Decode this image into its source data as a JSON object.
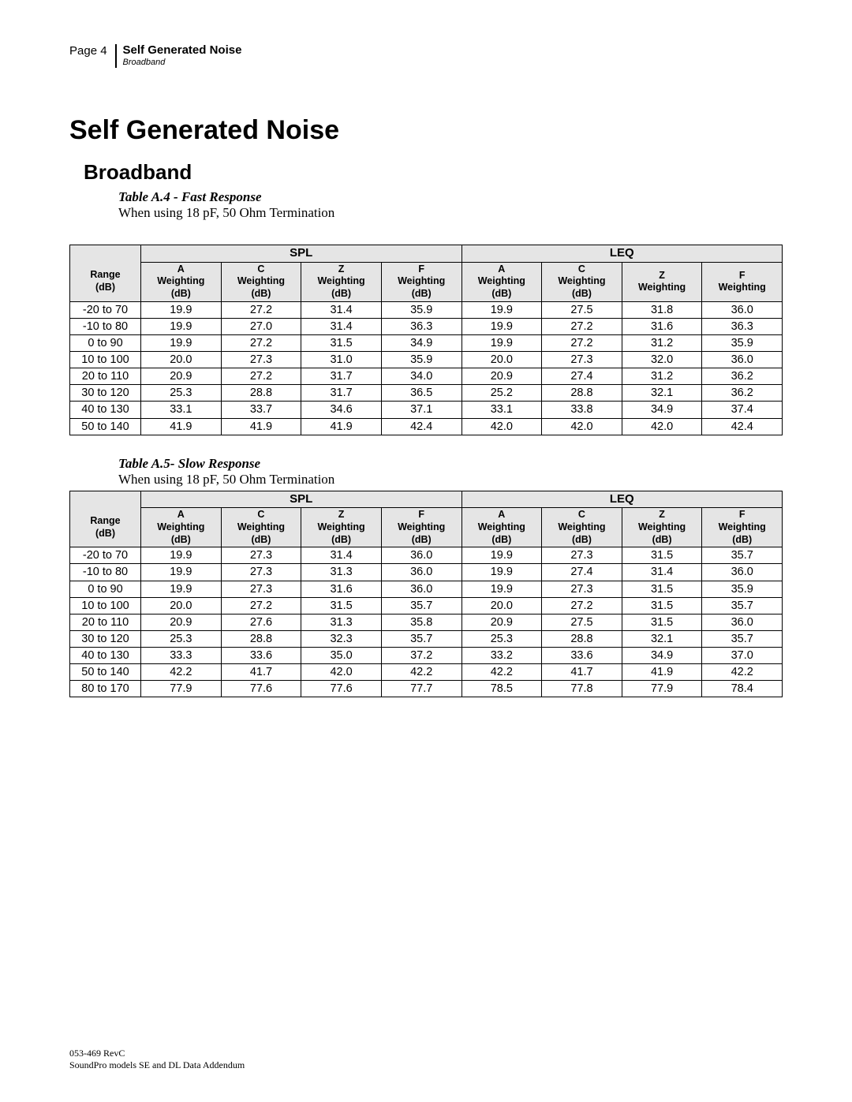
{
  "header": {
    "page_label": "Page 4",
    "title": "Self Generated Noise",
    "subtitle": "Broadband"
  },
  "main_title": "Self Generated Noise",
  "section_title": "Broadband",
  "tables": [
    {
      "caption": "Table A.4 - Fast Response",
      "subcaption": "When using 18 pF, 50 Ohm Termination",
      "group_headers": [
        "SPL",
        "LEQ"
      ],
      "range_header": {
        "top": "Range",
        "bottom": "(dB)"
      },
      "sub_headers": [
        {
          "top": "A",
          "mid": "Weighting",
          "bottom": "(dB)"
        },
        {
          "top": "C",
          "mid": "Weighting",
          "bottom": "(dB)"
        },
        {
          "top": "Z",
          "mid": "Weighting",
          "bottom": "(dB)"
        },
        {
          "top": "F",
          "mid": "Weighting",
          "bottom": "(dB)"
        },
        {
          "top": "A",
          "mid": "Weighting",
          "bottom": "(dB)"
        },
        {
          "top": "C",
          "mid": "Weighting",
          "bottom": "(dB)"
        },
        {
          "top": "Z",
          "mid": "Weighting",
          "bottom": ""
        },
        {
          "top": "F",
          "mid": "Weighting",
          "bottom": ""
        }
      ],
      "rows": [
        [
          "-20 to 70",
          "19.9",
          "27.2",
          "31.4",
          "35.9",
          "19.9",
          "27.5",
          "31.8",
          "36.0"
        ],
        [
          "-10 to 80",
          "19.9",
          "27.0",
          "31.4",
          "36.3",
          "19.9",
          "27.2",
          "31.6",
          "36.3"
        ],
        [
          "0 to 90",
          "19.9",
          "27.2",
          "31.5",
          "34.9",
          "19.9",
          "27.2",
          "31.2",
          "35.9"
        ],
        [
          "10 to 100",
          "20.0",
          "27.3",
          "31.0",
          "35.9",
          "20.0",
          "27.3",
          "32.0",
          "36.0"
        ],
        [
          "20 to 110",
          "20.9",
          "27.2",
          "31.7",
          "34.0",
          "20.9",
          "27.4",
          "31.2",
          "36.2"
        ],
        [
          "30 to 120",
          "25.3",
          "28.8",
          "31.7",
          "36.5",
          "25.2",
          "28.8",
          "32.1",
          "36.2"
        ],
        [
          "40 to 130",
          "33.1",
          "33.7",
          "34.6",
          "37.1",
          "33.1",
          "33.8",
          "34.9",
          "37.4"
        ],
        [
          "50 to 140",
          "41.9",
          "41.9",
          "41.9",
          "42.4",
          "42.0",
          "42.0",
          "42.0",
          "42.4"
        ]
      ]
    },
    {
      "caption": "Table A.5- Slow Response",
      "subcaption": "When using 18 pF, 50 Ohm Termination",
      "group_headers": [
        "SPL",
        "LEQ"
      ],
      "range_header": {
        "top": "Range",
        "bottom": "(dB)"
      },
      "sub_headers": [
        {
          "top": "A",
          "mid": "Weighting",
          "bottom": "(dB)"
        },
        {
          "top": "C",
          "mid": "Weighting",
          "bottom": "(dB)"
        },
        {
          "top": "Z",
          "mid": "Weighting",
          "bottom": "(dB)"
        },
        {
          "top": "F",
          "mid": "Weighting",
          "bottom": "(dB)"
        },
        {
          "top": "A",
          "mid": "Weighting",
          "bottom": "(dB)"
        },
        {
          "top": "C",
          "mid": "Weighting",
          "bottom": "(dB)"
        },
        {
          "top": "Z",
          "mid": "Weighting",
          "bottom": "(dB)"
        },
        {
          "top": "F",
          "mid": "Weighting",
          "bottom": "(dB)"
        }
      ],
      "rows": [
        [
          "-20 to 70",
          "19.9",
          "27.3",
          "31.4",
          "36.0",
          "19.9",
          "27.3",
          "31.5",
          "35.7"
        ],
        [
          "-10 to 80",
          "19.9",
          "27.3",
          "31.3",
          "36.0",
          "19.9",
          "27.4",
          "31.4",
          "36.0"
        ],
        [
          "0 to 90",
          "19.9",
          "27.3",
          "31.6",
          "36.0",
          "19.9",
          "27.3",
          "31.5",
          "35.9"
        ],
        [
          "10 to 100",
          "20.0",
          "27.2",
          "31.5",
          "35.7",
          "20.0",
          "27.2",
          "31.5",
          "35.7"
        ],
        [
          "20 to 110",
          "20.9",
          "27.6",
          "31.3",
          "35.8",
          "20.9",
          "27.5",
          "31.5",
          "36.0"
        ],
        [
          "30 to 120",
          "25.3",
          "28.8",
          "32.3",
          "35.7",
          "25.3",
          "28.8",
          "32.1",
          "35.7"
        ],
        [
          "40 to 130",
          "33.3",
          "33.6",
          "35.0",
          "37.2",
          "33.2",
          "33.6",
          "34.9",
          "37.0"
        ],
        [
          "50 to 140",
          "42.2",
          "41.7",
          "42.0",
          "42.2",
          "42.2",
          "41.7",
          "41.9",
          "42.2"
        ],
        [
          "80 to 170",
          "77.9",
          "77.6",
          "77.6",
          "77.7",
          "78.5",
          "77.8",
          "77.9",
          "78.4"
        ]
      ]
    }
  ],
  "footer": {
    "line1": "053-469 RevC",
    "line2": "SoundPro models SE and DL Data Addendum"
  },
  "style": {
    "header_bg": "#e5e5e5",
    "border_color": "#000000",
    "page_bg": "#ffffff"
  }
}
